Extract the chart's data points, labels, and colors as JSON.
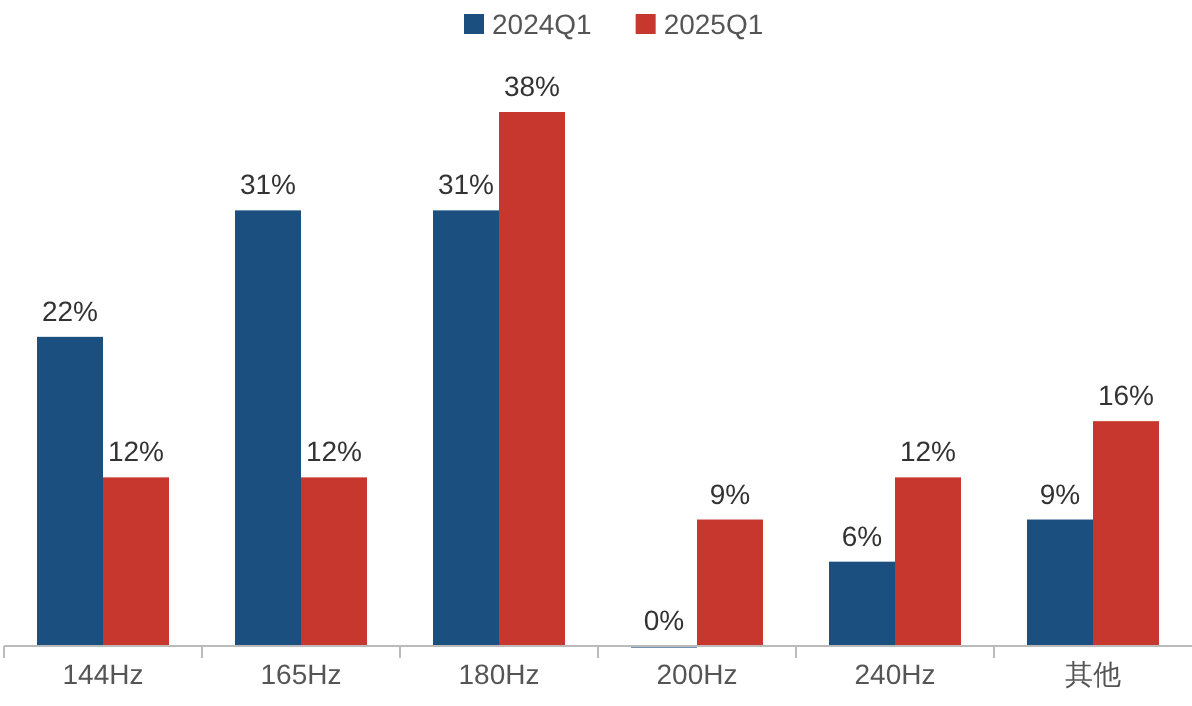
{
  "chart_data": {
    "type": "bar",
    "categories": [
      "144Hz",
      "165Hz",
      "180Hz",
      "200Hz",
      "240Hz",
      "其他"
    ],
    "series": [
      {
        "name": "2024Q1",
        "color": "#1b4f80",
        "values": [
          22,
          31,
          31,
          0,
          6,
          9
        ],
        "value_labels": [
          "22%",
          "31%",
          "31%",
          "0%",
          "6%",
          "9%"
        ]
      },
      {
        "name": "2025Q1",
        "color": "#c8372d",
        "values": [
          12,
          12,
          38,
          9,
          12,
          16
        ],
        "value_labels": [
          "12%",
          "12%",
          "38%",
          "9%",
          "12%",
          "16%"
        ]
      }
    ],
    "legend": "top"
  }
}
